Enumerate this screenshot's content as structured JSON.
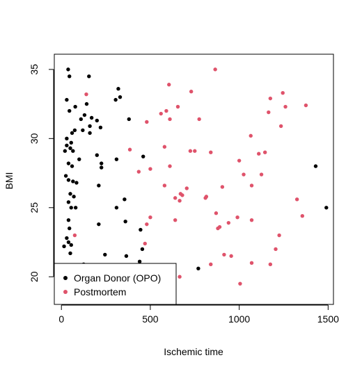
{
  "chart_data": {
    "type": "scatter",
    "title": "",
    "xlabel": "Ischemic time",
    "ylabel": "BMI",
    "xlim": [
      -40,
      1530
    ],
    "ylim": [
      18,
      36.1
    ],
    "x_ticks": [
      0,
      500,
      1000,
      1500
    ],
    "y_ticks": [
      20,
      25,
      30,
      35
    ],
    "grid": false,
    "legend": {
      "placement": "bottom-left",
      "marker": "filled-circle"
    },
    "series": [
      {
        "name": "Organ Donor (OPO)",
        "color": "#000000",
        "points": [
          [
            38,
            35.0
          ],
          [
            45,
            34.5
          ],
          [
            155,
            34.5
          ],
          [
            320,
            33.6
          ],
          [
            330,
            33.0
          ],
          [
            305,
            32.8
          ],
          [
            30,
            32.8
          ],
          [
            78,
            32.3
          ],
          [
            45,
            32.0
          ],
          [
            142,
            32.5
          ],
          [
            130,
            31.7
          ],
          [
            170,
            31.5
          ],
          [
            110,
            31.4
          ],
          [
            200,
            31.3
          ],
          [
            380,
            31.4
          ],
          [
            160,
            30.9
          ],
          [
            220,
            30.8
          ],
          [
            75,
            30.6
          ],
          [
            120,
            30.6
          ],
          [
            60,
            30.4
          ],
          [
            160,
            30.4
          ],
          [
            30,
            30.0
          ],
          [
            55,
            29.7
          ],
          [
            30,
            29.5
          ],
          [
            50,
            29.3
          ],
          [
            20,
            29.1
          ],
          [
            65,
            29.1
          ],
          [
            100,
            28.5
          ],
          [
            200,
            28.8
          ],
          [
            225,
            28.2
          ],
          [
            310,
            28.5
          ],
          [
            460,
            28.7
          ],
          [
            40,
            28.2
          ],
          [
            60,
            28.0
          ],
          [
            225,
            27.9
          ],
          [
            1430,
            28.0
          ],
          [
            25,
            27.3
          ],
          [
            40,
            27.0
          ],
          [
            65,
            26.9
          ],
          [
            85,
            26.8
          ],
          [
            50,
            26.0
          ],
          [
            70,
            25.8
          ],
          [
            210,
            26.6
          ],
          [
            40,
            25.4
          ],
          [
            55,
            25.0
          ],
          [
            80,
            25.0
          ],
          [
            310,
            25.0
          ],
          [
            355,
            25.6
          ],
          [
            1490,
            25.0
          ],
          [
            40,
            24.1
          ],
          [
            360,
            24.0
          ],
          [
            45,
            23.5
          ],
          [
            210,
            23.8
          ],
          [
            30,
            22.8
          ],
          [
            445,
            23.4
          ],
          [
            455,
            22.0
          ],
          [
            40,
            22.5
          ],
          [
            55,
            22.3
          ],
          [
            15,
            22.2
          ],
          [
            50,
            21.7
          ],
          [
            245,
            21.6
          ],
          [
            365,
            21.5
          ],
          [
            440,
            21.1
          ],
          [
            125,
            20.9
          ],
          [
            770,
            20.6
          ]
        ]
      },
      {
        "name": "Postmortem",
        "color": "#DF536B",
        "points": [
          [
            865,
            35.0
          ],
          [
            605,
            33.9
          ],
          [
            730,
            33.4
          ],
          [
            140,
            33.2
          ],
          [
            1245,
            33.3
          ],
          [
            1175,
            32.9
          ],
          [
            655,
            32.3
          ],
          [
            1260,
            32.3
          ],
          [
            1375,
            32.4
          ],
          [
            590,
            32.0
          ],
          [
            560,
            31.8
          ],
          [
            1165,
            31.9
          ],
          [
            610,
            31.4
          ],
          [
            480,
            31.2
          ],
          [
            775,
            31.4
          ],
          [
            1235,
            30.9
          ],
          [
            1065,
            30.2
          ],
          [
            385,
            29.2
          ],
          [
            580,
            29.4
          ],
          [
            725,
            29.1
          ],
          [
            750,
            29.1
          ],
          [
            840,
            29.0
          ],
          [
            1110,
            28.9
          ],
          [
            1145,
            29.0
          ],
          [
            1000,
            28.4
          ],
          [
            610,
            28.0
          ],
          [
            500,
            27.8
          ],
          [
            435,
            27.6
          ],
          [
            1025,
            27.4
          ],
          [
            1125,
            27.4
          ],
          [
            580,
            26.6
          ],
          [
            670,
            26.0
          ],
          [
            680,
            25.9
          ],
          [
            705,
            26.4
          ],
          [
            905,
            26.5
          ],
          [
            1070,
            26.6
          ],
          [
            640,
            25.7
          ],
          [
            665,
            25.5
          ],
          [
            810,
            25.7
          ],
          [
            815,
            25.8
          ],
          [
            1325,
            25.6
          ],
          [
            870,
            24.6
          ],
          [
            500,
            24.3
          ],
          [
            640,
            24.1
          ],
          [
            940,
            23.9
          ],
          [
            990,
            24.3
          ],
          [
            1355,
            24.4
          ],
          [
            480,
            23.8
          ],
          [
            1070,
            24.1
          ],
          [
            880,
            23.5
          ],
          [
            890,
            23.6
          ],
          [
            75,
            23.0
          ],
          [
            1225,
            23.0
          ],
          [
            470,
            22.4
          ],
          [
            1205,
            22.0
          ],
          [
            915,
            21.6
          ],
          [
            955,
            21.5
          ],
          [
            840,
            20.9
          ],
          [
            1070,
            21.0
          ],
          [
            1175,
            20.9
          ],
          [
            665,
            20.0
          ],
          [
            1005,
            19.5
          ]
        ]
      }
    ]
  }
}
